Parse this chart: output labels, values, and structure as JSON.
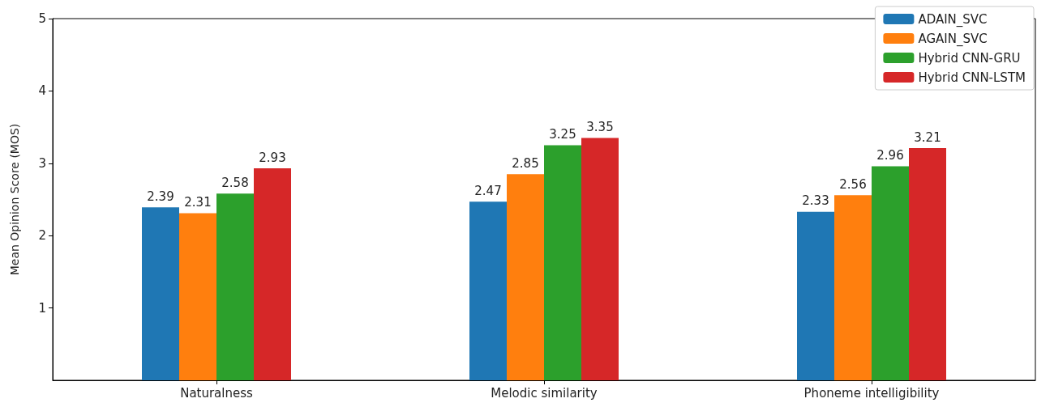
{
  "chart_data": {
    "type": "bar",
    "ylabel": "Mean Opinion Score (MOS)",
    "categories": [
      "Naturalness",
      "Melodic similarity",
      "Phoneme intelligibility"
    ],
    "series": [
      {
        "name": "ADAIN_SVC",
        "color": "#1f77b4",
        "values": [
          2.39,
          2.47,
          2.33
        ]
      },
      {
        "name": "AGAIN_SVC",
        "color": "#ff7f0e",
        "values": [
          2.31,
          2.85,
          2.56
        ]
      },
      {
        "name": "Hybrid CNN-GRU",
        "color": "#2ca02c",
        "values": [
          2.58,
          3.25,
          2.96
        ]
      },
      {
        "name": "Hybrid CNN-LSTM",
        "color": "#d62728",
        "values": [
          2.93,
          3.35,
          3.21
        ]
      }
    ],
    "ylim": [
      0,
      5
    ],
    "yticks": [
      1,
      2,
      3,
      4,
      5
    ],
    "grid": false,
    "legend": "top right",
    "data_labels": true
  }
}
